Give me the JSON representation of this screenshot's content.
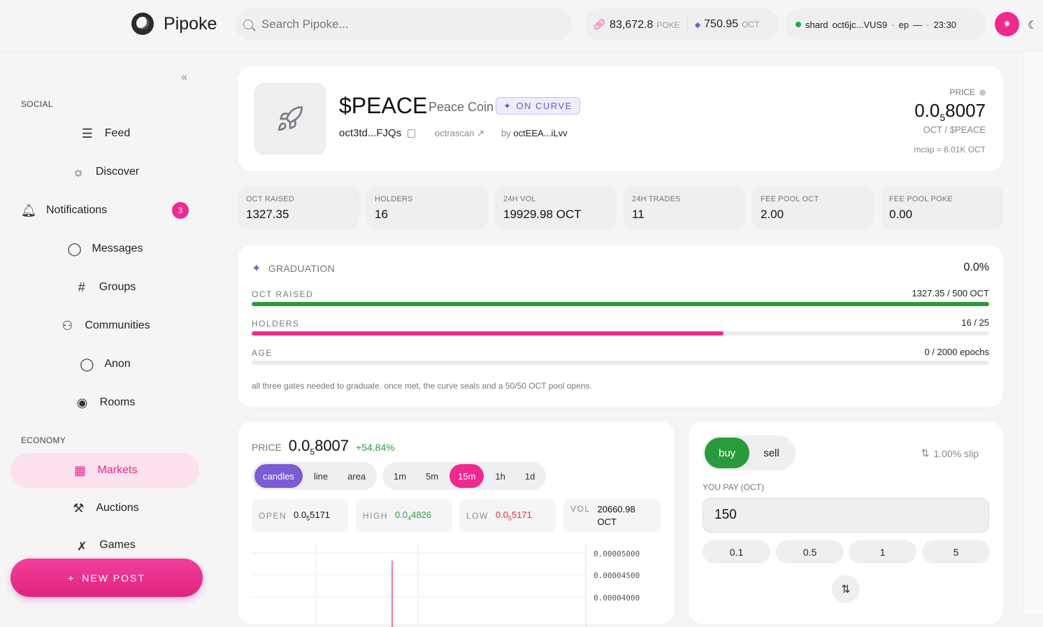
{
  "app": {
    "name": "Pipoke"
  },
  "search": {
    "placeholder": "Search Pipoke..."
  },
  "balances": {
    "poke_value": "83,672.8",
    "poke_unit": "POKE",
    "oct_value": "750.95",
    "oct_unit": "OCT"
  },
  "shard": {
    "label": "shard",
    "id": "oct6jc...VUS9",
    "ep_label": "ep",
    "ep_value": "—",
    "time": "23:30"
  },
  "sidebar": {
    "section_social": "SOCIAL",
    "section_economy": "ECONOMY",
    "items": [
      {
        "label": "Feed",
        "icon": "feed-icon"
      },
      {
        "label": "Discover",
        "icon": "compass-icon"
      },
      {
        "label": "Notifications",
        "icon": "bell-icon",
        "badge": "3"
      },
      {
        "label": "Messages",
        "icon": "message-icon"
      },
      {
        "label": "Groups",
        "icon": "hash-icon"
      },
      {
        "label": "Communities",
        "icon": "people-icon"
      },
      {
        "label": "Anon",
        "icon": "mask-icon"
      },
      {
        "label": "Rooms",
        "icon": "broadcast-icon"
      },
      {
        "label": "Markets",
        "icon": "chart-icon",
        "active": true
      },
      {
        "label": "Auctions",
        "icon": "gavel-icon"
      },
      {
        "label": "Games",
        "icon": "games-icon"
      }
    ],
    "new_post": "NEW POST"
  },
  "token": {
    "symbol": "$PEACE",
    "name": "Peace Coin",
    "status": "ON CURVE",
    "address": "oct3td...FJQs",
    "scan": "octrascan",
    "by_label": "by",
    "creator": "octEEA...iLvv",
    "price_label": "PRICE",
    "price_prefix": "0.0",
    "price_sub": "5",
    "price_rest": "8007",
    "pair": "OCT / $PEACE",
    "mcap": "mcap ≈ 8.01K OCT"
  },
  "stats": [
    {
      "label": "OCT RAISED",
      "value": "1327.35"
    },
    {
      "label": "HOLDERS",
      "value": "16"
    },
    {
      "label": "24H VOL",
      "value": "19929.98 OCT"
    },
    {
      "label": "24H TRADES",
      "value": "11"
    },
    {
      "label": "FEE POOL OCT",
      "value": "2.00"
    },
    {
      "label": "FEE POOL POKE",
      "value": "0.00"
    }
  ],
  "graduation": {
    "title": "GRADUATION",
    "percent": "0.0%",
    "rows": [
      {
        "label": "OCT RAISED",
        "value": "1327.35 / 500 OCT",
        "fill": 1.0,
        "color": "#2a9a3e"
      },
      {
        "label": "HOLDERS",
        "value": "16 / 25",
        "fill": 0.64,
        "color": "#ee2a8f"
      },
      {
        "label": "AGE",
        "value": "0 / 2000 epochs",
        "fill": 0.0,
        "color": "#7b5cd6"
      }
    ],
    "note": "all three gates needed to graduate. once met, the curve seals and a 50/50 OCT pool opens."
  },
  "chart": {
    "price_label": "PRICE",
    "price_prefix": "0.0",
    "price_sub": "5",
    "price_rest": "8007",
    "change": "+54.84%",
    "styles": [
      "candles",
      "line",
      "area"
    ],
    "intervals": [
      "1m",
      "5m",
      "15m",
      "1h",
      "1d"
    ],
    "ohlc": {
      "open_label": "OPEN",
      "open_prefix": "0.0",
      "open_sub": "5",
      "open_rest": "5171",
      "high_label": "HIGH",
      "high_prefix": "0.0",
      "high_sub": "4",
      "high_rest": "4826",
      "low_label": "LOW",
      "low_prefix": "0.0",
      "low_sub": "5",
      "low_rest": "5171",
      "vol_label": "VOL",
      "vol_value": "20660.98",
      "vol_unit": "OCT"
    }
  },
  "chart_data": {
    "type": "candlestick",
    "y_ticks": [
      "0.00005000",
      "0.00004500",
      "0.00004000"
    ]
  },
  "trade": {
    "buy": "buy",
    "sell": "sell",
    "slip": "1.00% slip",
    "pay_label": "YOU PAY (OCT)",
    "pay_value": "150",
    "chips": [
      "0.1",
      "0.5",
      "1",
      "5"
    ]
  }
}
